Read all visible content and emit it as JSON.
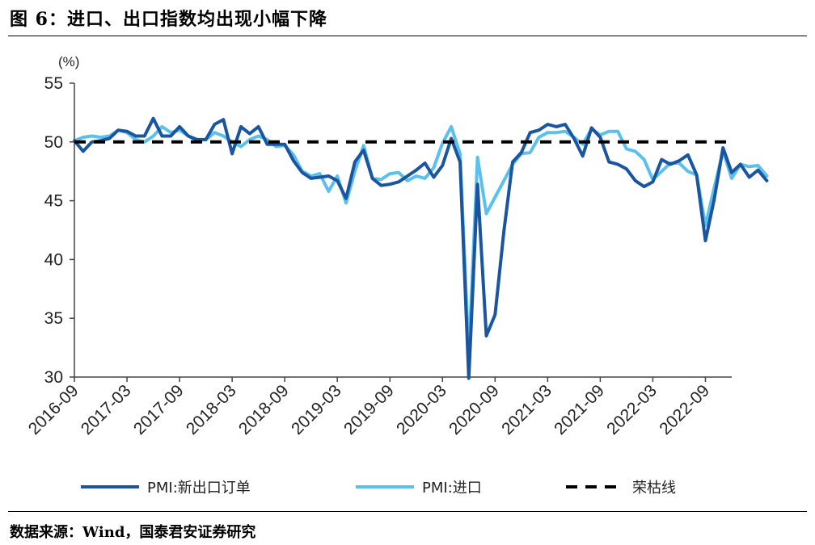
{
  "figure": {
    "title": "图 6：进口、出口指数均出现小幅下降",
    "source": "数据来源：Wind，国泰君安证券研究"
  },
  "chart_data": {
    "type": "line",
    "y_unit": "(%)",
    "ylim": [
      30,
      55
    ],
    "yticks": [
      30,
      35,
      40,
      45,
      50,
      55
    ],
    "x_tick_labels": [
      "2016-09",
      "2017-03",
      "2017-09",
      "2018-03",
      "2018-09",
      "2019-03",
      "2019-09",
      "2020-03",
      "2020-09",
      "2021-03",
      "2021-09",
      "2022-03",
      "2022-09"
    ],
    "x_start": "2016-09",
    "x_end": "2022-12",
    "legend_position": "bottom",
    "grid": false,
    "series": [
      {
        "name": "PMI:新出口订单",
        "color": "#1a56a0",
        "style": "solid",
        "values": [
          50.1,
          49.2,
          50.0,
          50.1,
          50.3,
          51.0,
          50.9,
          50.5,
          50.5,
          52.0,
          50.5,
          50.5,
          51.3,
          50.5,
          50.2,
          50.2,
          51.5,
          51.9,
          49.0,
          51.3,
          50.7,
          51.3,
          49.8,
          49.8,
          49.8,
          48.4,
          47.4,
          46.9,
          47.0,
          47.1,
          46.7,
          45.2,
          48.3,
          49.3,
          46.9,
          46.3,
          46.4,
          46.6,
          47.1,
          47.6,
          48.2,
          47.0,
          48.0,
          50.3,
          48.3,
          29.9,
          46.4,
          33.5,
          35.3,
          42.4,
          48.3,
          49.1,
          50.8,
          51.0,
          51.5,
          51.3,
          51.5,
          50.3,
          48.8,
          51.2,
          50.4,
          48.3,
          48.1,
          47.7,
          46.7,
          46.2,
          46.6,
          48.5,
          48.1,
          48.4,
          48.9,
          47.2,
          41.6,
          45.1,
          49.5,
          47.4,
          48.1,
          47.0,
          47.6,
          46.7
        ]
      },
      {
        "name": "PMI:进口",
        "color": "#5bc0eb",
        "style": "solid",
        "values": [
          50.1,
          50.4,
          50.5,
          50.4,
          50.5,
          51.0,
          50.8,
          50.2,
          50.0,
          50.5,
          51.3,
          50.8,
          51.0,
          50.5,
          50.1,
          50.2,
          50.8,
          50.5,
          50.0,
          49.6,
          50.2,
          50.5,
          50.2,
          49.6,
          49.7,
          48.9,
          47.5,
          47.1,
          47.3,
          45.8,
          47.1,
          44.8,
          47.5,
          49.7,
          46.9,
          46.8,
          47.3,
          47.4,
          46.7,
          47.1,
          46.9,
          47.8,
          49.9,
          51.3,
          49.0,
          31.9,
          48.7,
          43.9,
          45.3,
          46.7,
          48.1,
          49.0,
          49.1,
          50.4,
          50.8,
          50.8,
          50.9,
          50.4,
          49.8,
          51.1,
          50.6,
          50.9,
          50.9,
          49.4,
          49.2,
          48.5,
          46.8,
          47.5,
          48.2,
          48.2,
          47.5,
          47.2,
          42.9,
          46.1,
          49.2,
          46.9,
          48.1,
          47.9,
          48.0,
          47.1
        ]
      },
      {
        "name": "荣枯线",
        "color": "#000000",
        "style": "dashed",
        "values": [
          50
        ]
      }
    ]
  }
}
